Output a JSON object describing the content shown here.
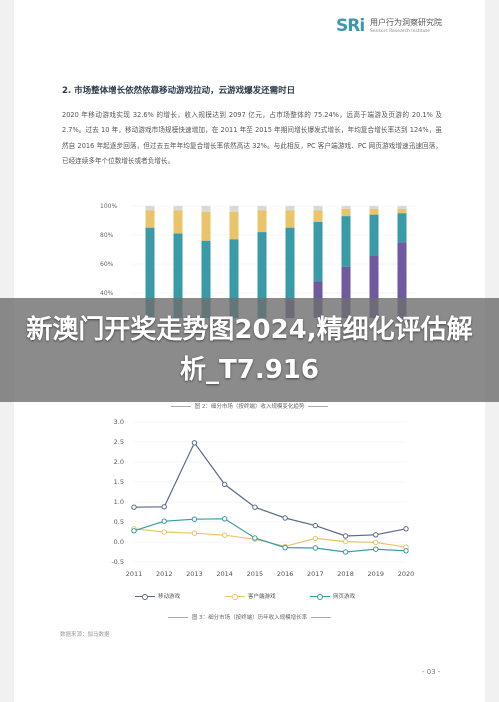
{
  "header": {
    "logo_mark": "SRi",
    "org_cn": "用户行为洞察研究院",
    "org_en": "Sensors Research Institute"
  },
  "section": {
    "heading": "2. 市场整体增长依然依靠移动游戏拉动，云游戏爆发还需时日",
    "paragraph": "2020 年移动游戏实现 32.6% 的增长，收入规模达到 2097 亿元，占市场整体的 75.24%，远高于端游及页游的 20.1% 及 2.7%。过去 10 年，移动游戏市场规模快速增加，在 2011 年至 2015 年期间增长爆发式增长，年均复合增长率达到 124%，虽然自 2016 年起逐步回落，但过去五年年均复合增长率依然高达 32%。与此相反，PC 客户端游戏、PC 网页游戏增速迅速回落，已经连续多年个位数增长或者负增长。"
  },
  "banner": {
    "text": "新澳门开奖走势图2024,精细化评估解析_T7.916"
  },
  "captions": {
    "fig2": "图 2：细分市场（按终端）收入规模变化趋势",
    "fig3": "图 3：细分市场（按终端）历年收入规模增长率"
  },
  "source": "数据来源：伽马数据",
  "page_number": "- 03 -",
  "chart_data": [
    {
      "type": "bar",
      "stacked": true,
      "percent": true,
      "categories": [
        "2011",
        "2012",
        "2013",
        "2014",
        "2015",
        "2016",
        "2017",
        "2018",
        "2019",
        "2020"
      ],
      "ytick_labels": [
        "100%",
        "80%",
        "60%",
        "40%"
      ],
      "series": [
        {
          "values": [
            2,
            3,
            8,
            15,
            22,
            35,
            48,
            58,
            66,
            75
          ],
          "color": "#6f5aa0"
        },
        {
          "values": [
            83,
            78,
            68,
            62,
            60,
            50,
            41,
            35,
            28,
            20
          ],
          "color": "#3a9aa7"
        },
        {
          "values": [
            12,
            16,
            20,
            19,
            15,
            12,
            8,
            5,
            4,
            3
          ],
          "color": "#e9c46a"
        },
        {
          "values": [
            3,
            3,
            4,
            4,
            3,
            3,
            3,
            2,
            2,
            2
          ],
          "color": "#d9d9d9"
        }
      ],
      "colors": {
        "mobile": "#6f5aa0",
        "client": "#3a9aa7",
        "web": "#e9c46a",
        "other": "#d9d9d9"
      }
    },
    {
      "type": "line",
      "x": [
        "2011",
        "2012",
        "2013",
        "2014",
        "2015",
        "2016",
        "2017",
        "2018",
        "2019",
        "2020"
      ],
      "ylim": [
        -0.5,
        3.0
      ],
      "yticks": [
        "3.0",
        "2.5",
        "2.0",
        "1.5",
        "1.0",
        "0.5",
        "0.0",
        "-0.5"
      ],
      "series": [
        {
          "name": "移动游戏",
          "values": [
            0.87,
            0.88,
            2.48,
            1.44,
            0.87,
            0.6,
            0.41,
            0.15,
            0.18,
            0.33
          ],
          "color": "#5a6b8c"
        },
        {
          "name": "客户端游戏",
          "values": [
            0.33,
            0.25,
            0.22,
            0.17,
            0.07,
            -0.11,
            0.09,
            0.01,
            -0.01,
            -0.13
          ],
          "color": "#e9c46a"
        },
        {
          "name": "网页游戏",
          "values": [
            0.28,
            0.52,
            0.57,
            0.58,
            0.1,
            -0.14,
            -0.15,
            -0.25,
            -0.18,
            -0.22
          ],
          "color": "#3a9aa7"
        }
      ]
    }
  ]
}
